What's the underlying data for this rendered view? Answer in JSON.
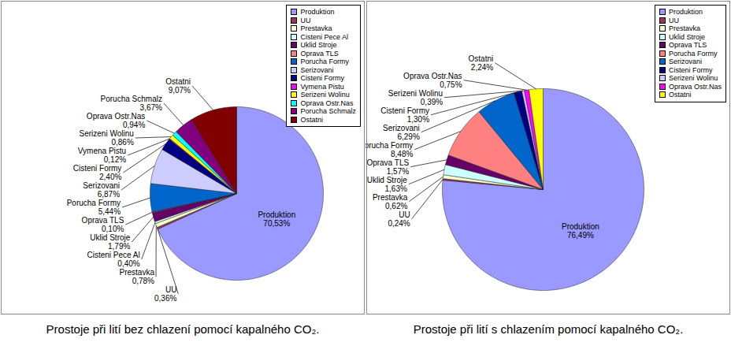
{
  "chart_data": [
    {
      "type": "pie",
      "title": "Prostoje při lití bez chlazení pomocí kapalného CO₂.",
      "categories": [
        "Produktion",
        "UU",
        "Prestavka",
        "Cisteni Pece Al",
        "Uklid Stroje",
        "Oprava TLS",
        "Porucha Formy",
        "Serizovani",
        "Cisteni Formy",
        "Vymena Pistu",
        "Serizeni Wolinu",
        "Oprava Ostr.Nas",
        "Porucha Schmalz",
        "Ostatni"
      ],
      "values": [
        70.53,
        0.36,
        0.78,
        0.4,
        1.79,
        0.1,
        5.44,
        6.87,
        2.4,
        0.12,
        0.86,
        0.94,
        3.67,
        9.07
      ],
      "value_labels": [
        "70,53%",
        "0,36%",
        "0,78%",
        "0,40%",
        "1,79%",
        "0,10%",
        "5,44%",
        "6,87%",
        "2,40%",
        "0,12%",
        "0,86%",
        "0,94%",
        "3,67%",
        "9,07%"
      ],
      "colors": [
        "#9999FF",
        "#993366",
        "#FFFFCC",
        "#CCFFFF",
        "#660066",
        "#FF8080",
        "#0066CC",
        "#CCCCFF",
        "#000080",
        "#FF00FF",
        "#FFFF00",
        "#00FFFF",
        "#800080",
        "#800000"
      ],
      "data_labels": true,
      "legend": "top-right"
    },
    {
      "type": "pie",
      "title": "Prostoje při lití s chlazením pomocí kapalného CO₂.",
      "categories": [
        "Produktion",
        "UU",
        "Prestavka",
        "Uklid Stroje",
        "Oprava TLS",
        "Porucha Formy",
        "Serizovani",
        "Cisteni Formy",
        "Serizeni Wolinu",
        "Oprava Ostr.Nas",
        "Ostatni"
      ],
      "values": [
        76.49,
        0.24,
        0.62,
        1.63,
        1.57,
        8.48,
        6.29,
        1.3,
        0.39,
        0.75,
        2.24
      ],
      "value_labels": [
        "76,49%",
        "0,24%",
        "0,62%",
        "1,63%",
        "1,57%",
        "8,48%",
        "6,29%",
        "1,30%",
        "0,39%",
        "0,75%",
        "2,24%"
      ],
      "colors": [
        "#9999FF",
        "#993366",
        "#FFFFCC",
        "#CCFFFF",
        "#660066",
        "#FF8080",
        "#0066CC",
        "#000080",
        "#CCCCFF",
        "#FF00FF",
        "#FFFF00"
      ],
      "data_labels": true,
      "legend": "top-right"
    }
  ]
}
